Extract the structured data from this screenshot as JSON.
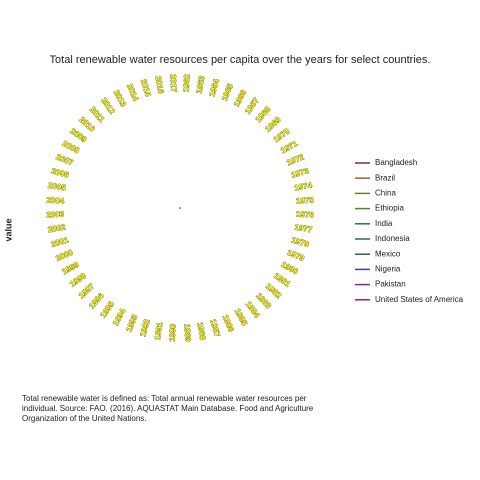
{
  "chart_data": {
    "type": "polar-line",
    "title": "Total renewable water resources per capita over the years for select countries.",
    "ylabel": "value",
    "categories": [
      "1962",
      "1963",
      "1964",
      "1965",
      "1966",
      "1967",
      "1968",
      "1969",
      "1970",
      "1971",
      "1972",
      "1973",
      "1974",
      "1975",
      "1976",
      "1977",
      "1978",
      "1979",
      "1980",
      "1981",
      "1982",
      "1983",
      "1984",
      "1985",
      "1986",
      "1987",
      "1988",
      "1989",
      "1990",
      "1991",
      "1992",
      "1993",
      "1994",
      "1995",
      "1996",
      "1997",
      "1998",
      "1999",
      "2000",
      "2001",
      "2002",
      "2003",
      "2004",
      "2005",
      "2006",
      "2007",
      "2008",
      "2009",
      "2010",
      "2011",
      "2012",
      "2013",
      "2014",
      "2015",
      "2016",
      "2017"
    ],
    "series": [
      {
        "name": "Bangladesh",
        "color": "#8b2a2a"
      },
      {
        "name": "Brazil",
        "color": "#a0641e"
      },
      {
        "name": "China",
        "color": "#7a7a1e"
      },
      {
        "name": "Ethiopia",
        "color": "#4a8a1e"
      },
      {
        "name": "India",
        "color": "#1e7a4a"
      },
      {
        "name": "Indonesia",
        "color": "#1e6e6e"
      },
      {
        "name": "Mexico",
        "color": "#1e5a8a"
      },
      {
        "name": "Nigeria",
        "color": "#4a3a9a"
      },
      {
        "name": "Pakistan",
        "color": "#7a2a8a"
      },
      {
        "name": "United States of America",
        "color": "#a01e5a"
      }
    ],
    "caption": [
      "Total renewable water is defined as: Total annual renewable water resources per",
      "individual. Source: FAO. (2016). AQUASTAT Main Database. Food and Agriculture",
      "Organization of the United Nations."
    ]
  }
}
